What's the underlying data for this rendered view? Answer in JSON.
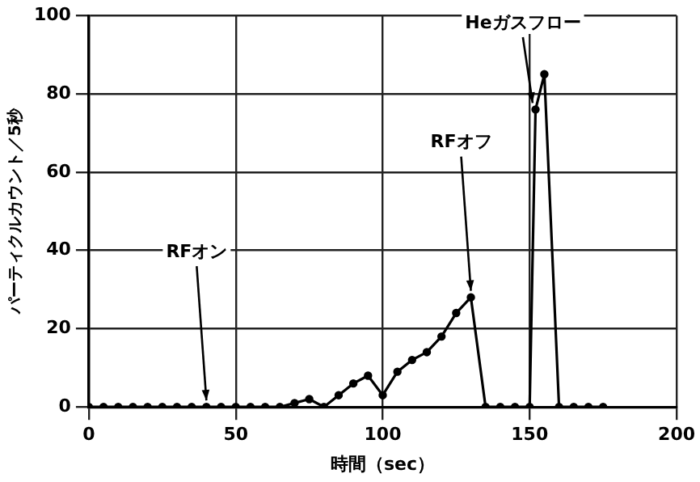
{
  "chart_data": {
    "type": "line",
    "xlabel": "時間（sec）",
    "ylabel": "パーティクルカウント／5秒",
    "x": [
      0,
      5,
      10,
      15,
      20,
      25,
      30,
      35,
      40,
      45,
      50,
      55,
      60,
      65,
      70,
      75,
      80,
      85,
      90,
      95,
      100,
      105,
      110,
      115,
      120,
      125,
      130,
      135,
      140,
      145,
      150,
      152,
      155,
      160,
      165,
      170,
      175
    ],
    "series": [
      {
        "color": "#000000",
        "values": [
          0,
          0,
          0,
          0,
          0,
          0,
          0,
          0,
          0,
          0,
          0,
          0,
          0,
          0,
          1,
          2,
          0,
          3,
          6,
          8,
          3,
          9,
          12,
          14,
          18,
          24,
          28,
          0,
          0,
          0,
          0,
          76,
          85,
          0,
          0,
          0,
          0
        ]
      }
    ],
    "xlim": [
      0,
      200
    ],
    "xticks": [
      0,
      50,
      100,
      150,
      200
    ],
    "ylim": [
      0,
      100
    ],
    "yticks": [
      0,
      20,
      40,
      60,
      80,
      100
    ],
    "grid": true,
    "marker": "circle",
    "line_style": "solid",
    "legend": false,
    "annotations": [
      {
        "text": "RFオン",
        "x": 40,
        "y": 0
      },
      {
        "text": "RFオフ",
        "x": 130,
        "y": 28
      },
      {
        "text": "Heガスフロー",
        "x": 151,
        "y": 76
      }
    ]
  }
}
